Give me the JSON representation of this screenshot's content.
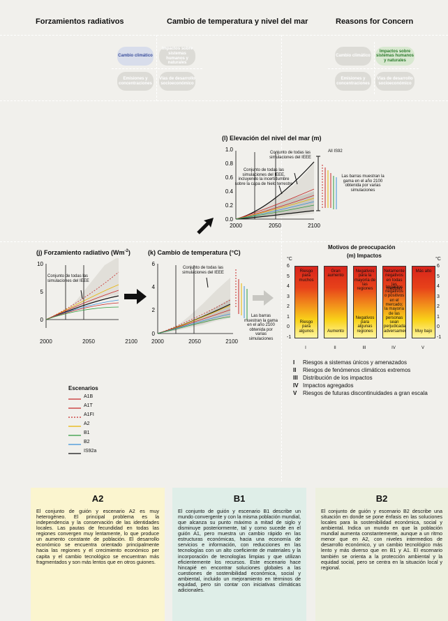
{
  "headers": {
    "col1": "Forzamientos radiativos",
    "col2": "Cambio de temperatura y nivel del mar",
    "col3": "Reasons for Concern"
  },
  "diagram_left": {
    "pills": [
      "Cambio climático",
      "Impactos sobre sistemas humanos y naturales",
      "Emisiones y concentraciones",
      "Vías de desarrollo socioeconómico"
    ]
  },
  "diagram_right": {
    "pills": [
      "Cambio climático",
      "Impactos sobre sistemas humanos y naturales",
      "Emisiones y concentraciones",
      "Vías de desarrollo socioeconómico"
    ]
  },
  "panel_l": {
    "title": "(l) Elevación del nivel del mar (m)",
    "ann1": "Conjunto de todas las simulaciones del IEEE",
    "ann2": "Conjunto de todas las simulaciones del IEEE, incluyendo la incertidumbre sobre la capa de hielo terrestre",
    "all_is92": "All IS92",
    "bars_note": "Las barras muestran la gama en el año 2100 obtenida por varias simulaciones",
    "yticks": [
      "0.0",
      "0.2",
      "0.4",
      "0.6",
      "0.8",
      "1.0"
    ],
    "xticks": [
      "2000",
      "2050",
      "2100"
    ]
  },
  "panel_j": {
    "title": "(j) Forzamiento radiativo (Wm",
    "title_sup": "-2",
    "title_end": ")",
    "ann": "Conjunto de todas las simulaciones del IEEE",
    "yticks": [
      "0",
      "5",
      "10"
    ],
    "xticks": [
      "2000",
      "2050",
      "2100"
    ]
  },
  "panel_k": {
    "title": "(k) Cambio de temperatura (°C)",
    "ann": "Conjunto de todas las simulaciones del IEEE",
    "bars_note": "Las barras muestran la gama en el año 2100 obtenida por varias simulaciones",
    "yticks": [
      "0",
      "2",
      "4",
      "6"
    ],
    "xticks": [
      "2000",
      "2050",
      "2100"
    ]
  },
  "panel_m": {
    "title1": "Motivos de preocupación",
    "title2": "(m) Impactos",
    "unit": "°C",
    "yticks": [
      "-1",
      "0",
      "1",
      "2",
      "3",
      "4",
      "5",
      "6"
    ],
    "columns": [
      {
        "roman": "I",
        "top": "Riesgo para muchos",
        "bottom": "Riesgo para algunos"
      },
      {
        "roman": "II",
        "top": "Gran aumento",
        "bottom": "Aumento"
      },
      {
        "roman": "III",
        "top": "Negativos para la mayoría de las regiones",
        "bottom": "Negativos para algunas regiones"
      },
      {
        "roman": "IV",
        "top": "Netamente negativos en todas las medidas",
        "bottom": "Impactos negativos o positivos en el mercado; la mayoría de las personas sean perjudicadas adversamente"
      },
      {
        "roman": "V",
        "top": "Más alto",
        "bottom": "Muy bajo"
      }
    ],
    "list": [
      {
        "roman": "I",
        "text": "Riesgos a sistemas únicos y amenazados"
      },
      {
        "roman": "II",
        "text": "Riesgos de fenómenos climáticos extremos"
      },
      {
        "roman": "III",
        "text": "Distribución de los impactos"
      },
      {
        "roman": "IV",
        "text": "Impactos agregados"
      },
      {
        "roman": "V",
        "text": "Riesgos de futuras discontinuidades a gran escala"
      }
    ]
  },
  "legend": {
    "title": "Escenarios",
    "items": [
      {
        "name": "A1B",
        "color": "#c62828",
        "dash": ""
      },
      {
        "name": "A1T",
        "color": "#c62828",
        "dash": ""
      },
      {
        "name": "A1FI",
        "color": "#c62828",
        "dash": "2,2"
      },
      {
        "name": "A2",
        "color": "#e8b400",
        "dash": ""
      },
      {
        "name": "B1",
        "color": "#2e9a3c",
        "dash": ""
      },
      {
        "name": "B2",
        "color": "#3b8fd8",
        "dash": ""
      },
      {
        "name": "IS92a",
        "color": "#111111",
        "dash": ""
      }
    ]
  },
  "scenarios": {
    "a2": {
      "title": "A2",
      "text": "El conjunto de guión y escenario A2 es muy heterogéneo. El principal problema es la independencia y la conservación de las identidades locales. Las pautas de fecundidad en todas las regiones convergen muy lentamente, lo que produce un aumento constante de población. El desarrollo económico se encuentra orientado principalmente hacia las regiones y el crecimiento económico per capita y el cambio tecnológico se encuentran más fragmentados y son más lentos que en otros guiones.",
      "bg": "#fbf5cf"
    },
    "b1": {
      "title": "B1",
      "text": "El conjunto de guión y escenario B1 describe un mundo convergente y con la misma población mundial, que alcanza su punto máximo a mitad de siglo y disminuye posteriormente, tal y como sucede en el guión A1, pero muestra un cambio rápido en las estructuras económicas, hacia una economía de servicios e información, con reducciones en las tecnologías con un alto coeficiente de materiales y la incorporación de tecnologías limpias y que utilizan eficientemente los recursos. Este escenario hace hincapié en encontrar soluciones globales a las cuestiones de sostenibilidad económica, social y ambiental, incluido un mejoramiento en términos de equidad, pero sin contar con iniciativas climáticas adicionales.",
      "bg": "#dfeee8"
    },
    "b2": {
      "title": "B2",
      "text": "El conjunto de guión y escenario B2 describe una situación en donde se pone énfasis en las soluciones locales para la sostenibilidad económica, social y ambiental. Indica un mundo en que la población mundial aumenta constantemente, aunque a un ritmo menor que en A2, con niveles intermedios de desarrollo económico, y un cambio tecnológico más lento y más diverso que en B1 y A1. El escenario también se orienta a la protección ambiental y la equidad social, pero se centra en la situación local y regional.",
      "bg": "#edf0df"
    }
  }
}
